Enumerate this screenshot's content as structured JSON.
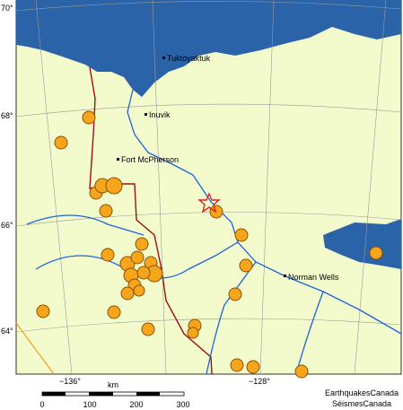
{
  "map": {
    "lat_labels": [
      "70°",
      "68°",
      "66°",
      "64°"
    ],
    "lon_labels": [
      "−136°",
      "−128°"
    ],
    "places": [
      "Tuktoyaktuk",
      "Inuvik",
      "Fort McPherson",
      "Norman Wells"
    ],
    "scale": {
      "unit": "km",
      "ticks": [
        "0",
        "100",
        "200",
        "300"
      ]
    },
    "credits": [
      "EarthquakesCanada",
      "SéismesCanada"
    ]
  }
}
